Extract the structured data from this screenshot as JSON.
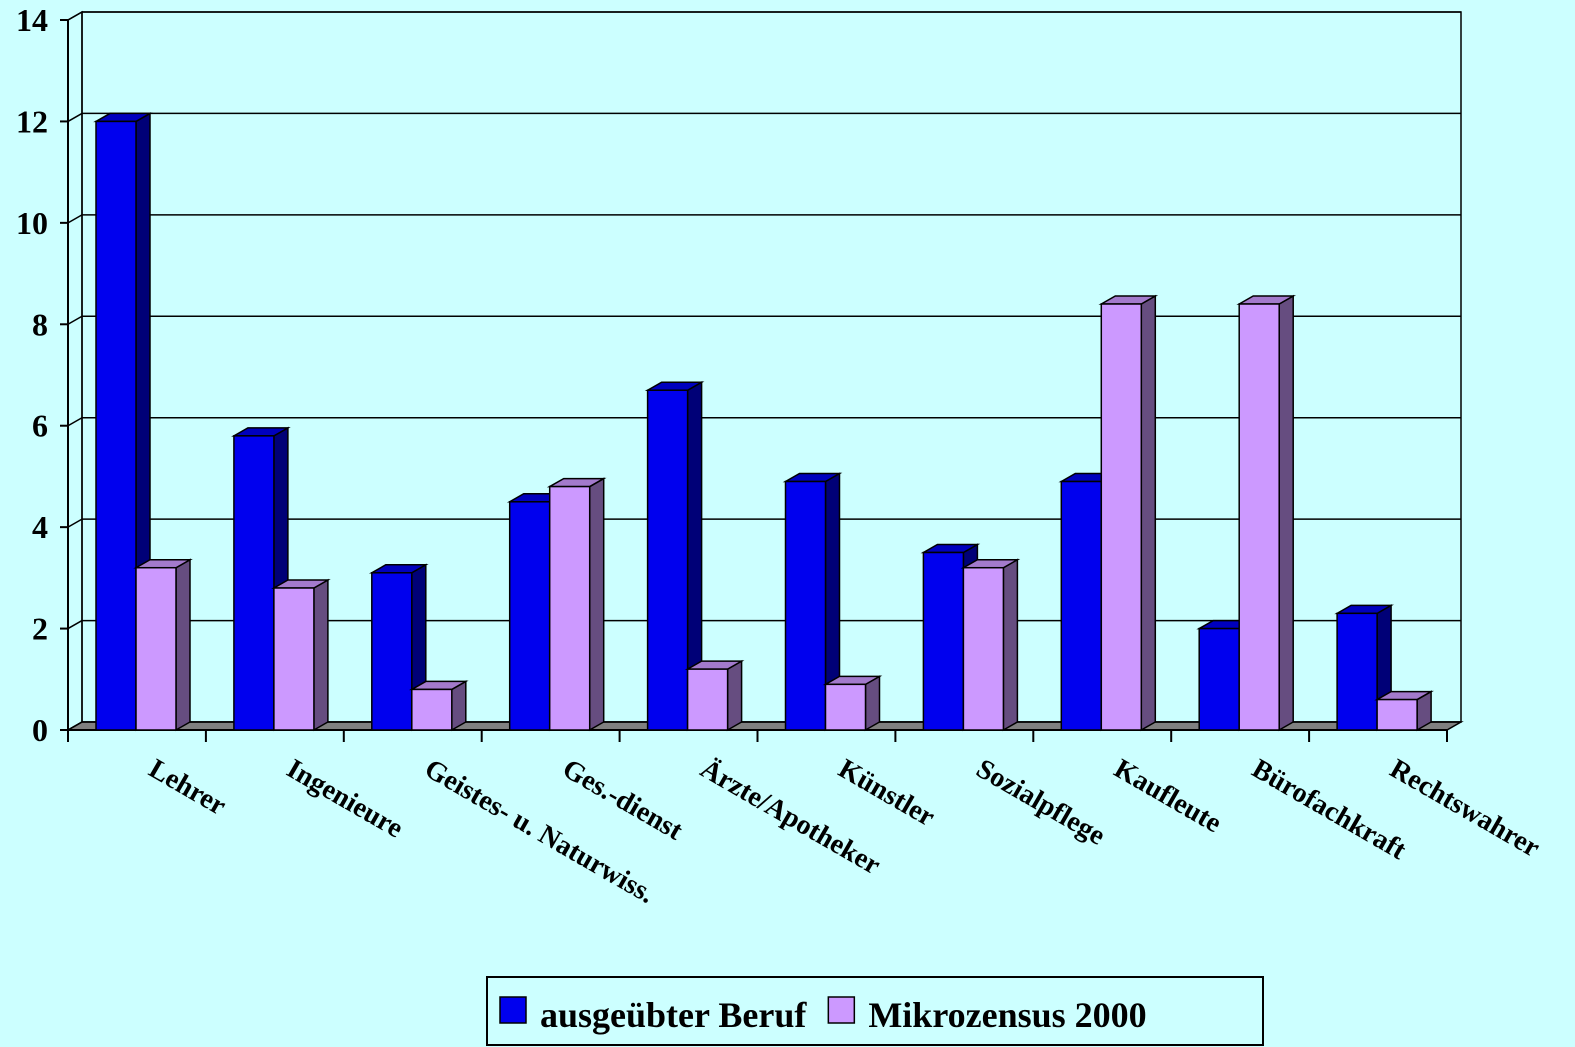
{
  "chart_data": {
    "type": "bar3d",
    "categories": [
      "Lehrer",
      "Ingenieure",
      "Geistes- u. Naturwiss.",
      "Ges.-dienst",
      "Ärzte/Apotheker",
      "Künstler",
      "Sozialpflege",
      "Kaufleute",
      "Bürofachkraft",
      "Rechtswahrer"
    ],
    "series": [
      {
        "name": "ausgeübter Beruf",
        "color": "#0000ee",
        "values": [
          12.0,
          5.8,
          3.1,
          4.5,
          6.7,
          4.9,
          3.5,
          4.9,
          2.0,
          2.3
        ]
      },
      {
        "name": "Mikrozensus 2000",
        "color": "#cc99ff",
        "values": [
          3.2,
          2.8,
          0.8,
          4.8,
          1.2,
          0.9,
          3.2,
          8.4,
          8.4,
          0.6
        ]
      }
    ],
    "ylim": [
      0,
      14
    ],
    "yticks": [
      0,
      2,
      4,
      6,
      8,
      10,
      12,
      14
    ],
    "grid": true,
    "legend": "bottom"
  }
}
